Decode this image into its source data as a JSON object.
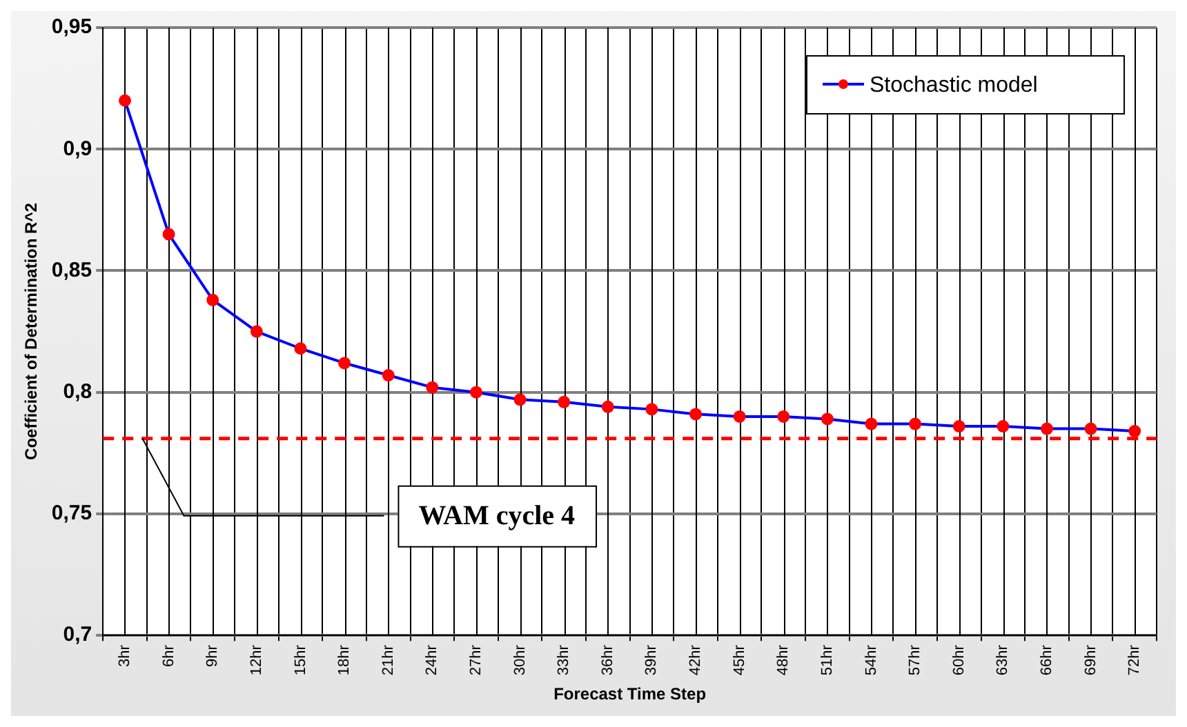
{
  "chart_data": {
    "type": "line",
    "xlabel": "Forecast Time Step",
    "ylabel": "Coefficient of Determination R^2",
    "categories": [
      "3hr",
      "6hr",
      "9hr",
      "12hr",
      "15hr",
      "18hr",
      "21hr",
      "24hr",
      "27hr",
      "30hr",
      "33hr",
      "36hr",
      "39hr",
      "42hr",
      "45hr",
      "48hr",
      "51hr",
      "54hr",
      "57hr",
      "60hr",
      "63hr",
      "66hr",
      "69hr",
      "72hr"
    ],
    "series": [
      {
        "name": "Stochastic model",
        "color": "#0000ff",
        "colors": [
          "#ff0000",
          "#ff0000",
          "#ff0000",
          "#ff0000",
          "#ff0000",
          "#ff0000",
          "#ff0000",
          "#ff0000",
          "#ff0000",
          "#ff0000",
          "#ff0000",
          "#ff0000",
          "#ff0000",
          "#ff0000",
          "#ff0000",
          "#ff0000",
          "#ff0000",
          "#ff0000",
          "#ff0000",
          "#ff0000",
          "#ff0000",
          "#ff0000",
          "#ff0000",
          "#ff0000"
        ],
        "values": [
          0.92,
          0.865,
          0.838,
          0.825,
          0.818,
          0.812,
          0.807,
          0.802,
          0.8,
          0.797,
          0.796,
          0.794,
          0.793,
          0.791,
          0.79,
          0.79,
          0.789,
          0.787,
          0.787,
          0.786,
          0.786,
          0.785,
          0.785,
          0.784
        ]
      }
    ],
    "ylim": [
      0.7,
      0.95
    ],
    "yticks": [
      {
        "value": 0.7,
        "label": "0,7"
      },
      {
        "value": 0.75,
        "label": "0,75"
      },
      {
        "value": 0.8,
        "label": "0,8"
      },
      {
        "value": 0.85,
        "label": "0,85"
      },
      {
        "value": 0.9,
        "label": "0,9"
      },
      {
        "value": 0.95,
        "label": "0,95"
      }
    ],
    "ref_lines": [
      {
        "axis": "y",
        "value": 0.781,
        "label": "WAM cycle 4",
        "color": "#ff0000",
        "line_style": "dashed"
      }
    ],
    "grid": true,
    "legend": "top right",
    "marker": "circle",
    "line_style": "solid"
  }
}
